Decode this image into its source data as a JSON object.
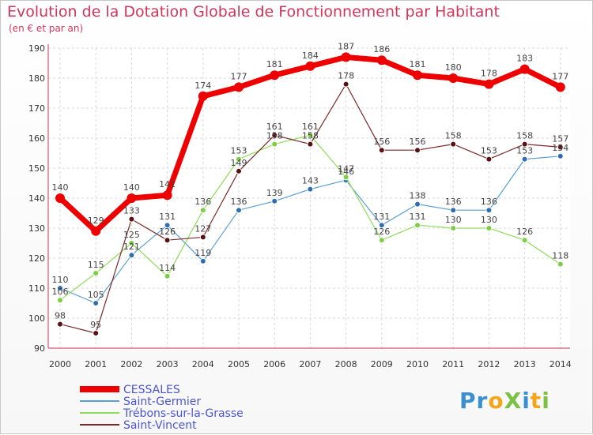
{
  "title": "Evolution de la Dotation Globale de Fonctionnement par Habitant",
  "subtitle": "(en € et par an)",
  "logo": "ProXiti",
  "chart_data": {
    "type": "line",
    "categories": [
      "2000",
      "2001",
      "2002",
      "2003",
      "2004",
      "2005",
      "2006",
      "2007",
      "2008",
      "2009",
      "2010",
      "2011",
      "2012",
      "2013",
      "2014"
    ],
    "ylim": [
      90,
      190
    ],
    "yticks": [
      90,
      100,
      110,
      120,
      130,
      140,
      150,
      160,
      170,
      180,
      190
    ],
    "grid": true,
    "legend_position": "bottom-left",
    "series": [
      {
        "name": "CESSALES",
        "color": "#ee0000",
        "width": 7,
        "radius": 6,
        "values": [
          140,
          129,
          140,
          141,
          174,
          177,
          181,
          184,
          187,
          186,
          181,
          180,
          178,
          183,
          177
        ]
      },
      {
        "name": "Saint-Germier",
        "color": "#5a9fd4",
        "width": 1.2,
        "radius": 3.5,
        "dot": "#2f6fb0",
        "values": [
          110,
          105,
          121,
          131,
          119,
          136,
          139,
          143,
          146,
          131,
          138,
          136,
          136,
          153,
          154
        ]
      },
      {
        "name": "Trébons-sur-la-Grasse",
        "color": "#8fdc5a",
        "width": 1.2,
        "radius": 3.5,
        "dot": "#7ccf44",
        "values": [
          106,
          115,
          125,
          114,
          136,
          153,
          158,
          161,
          147,
          126,
          131,
          130,
          130,
          126,
          118
        ]
      },
      {
        "name": "Saint-Vincent",
        "color": "#7a2a2a",
        "width": 1.2,
        "radius": 3.5,
        "dot": "#5a1010",
        "values": [
          98,
          95,
          133,
          126,
          127,
          149,
          161,
          158,
          178,
          156,
          156,
          158,
          153,
          158,
          157
        ]
      }
    ],
    "label_texts": [
      [
        "140",
        "129",
        "140",
        "141",
        "174",
        "177",
        "181",
        "184",
        "187",
        "186",
        "181",
        "180",
        "178",
        "183",
        "177"
      ],
      [
        "110",
        "105",
        "121",
        "131",
        "119",
        "136",
        "139",
        "143",
        "146",
        "131",
        "138",
        "136",
        "136",
        "153",
        "154"
      ],
      [
        "106",
        "115",
        "125",
        "114",
        "136",
        "153",
        "158",
        "161",
        "147",
        "126",
        "131",
        "130",
        "130",
        "126",
        "118"
      ],
      [
        "98",
        "95",
        "133",
        "126",
        "127",
        "149",
        "161",
        "158",
        "178",
        "156",
        "156",
        "158",
        "153",
        "158",
        "157"
      ]
    ]
  }
}
